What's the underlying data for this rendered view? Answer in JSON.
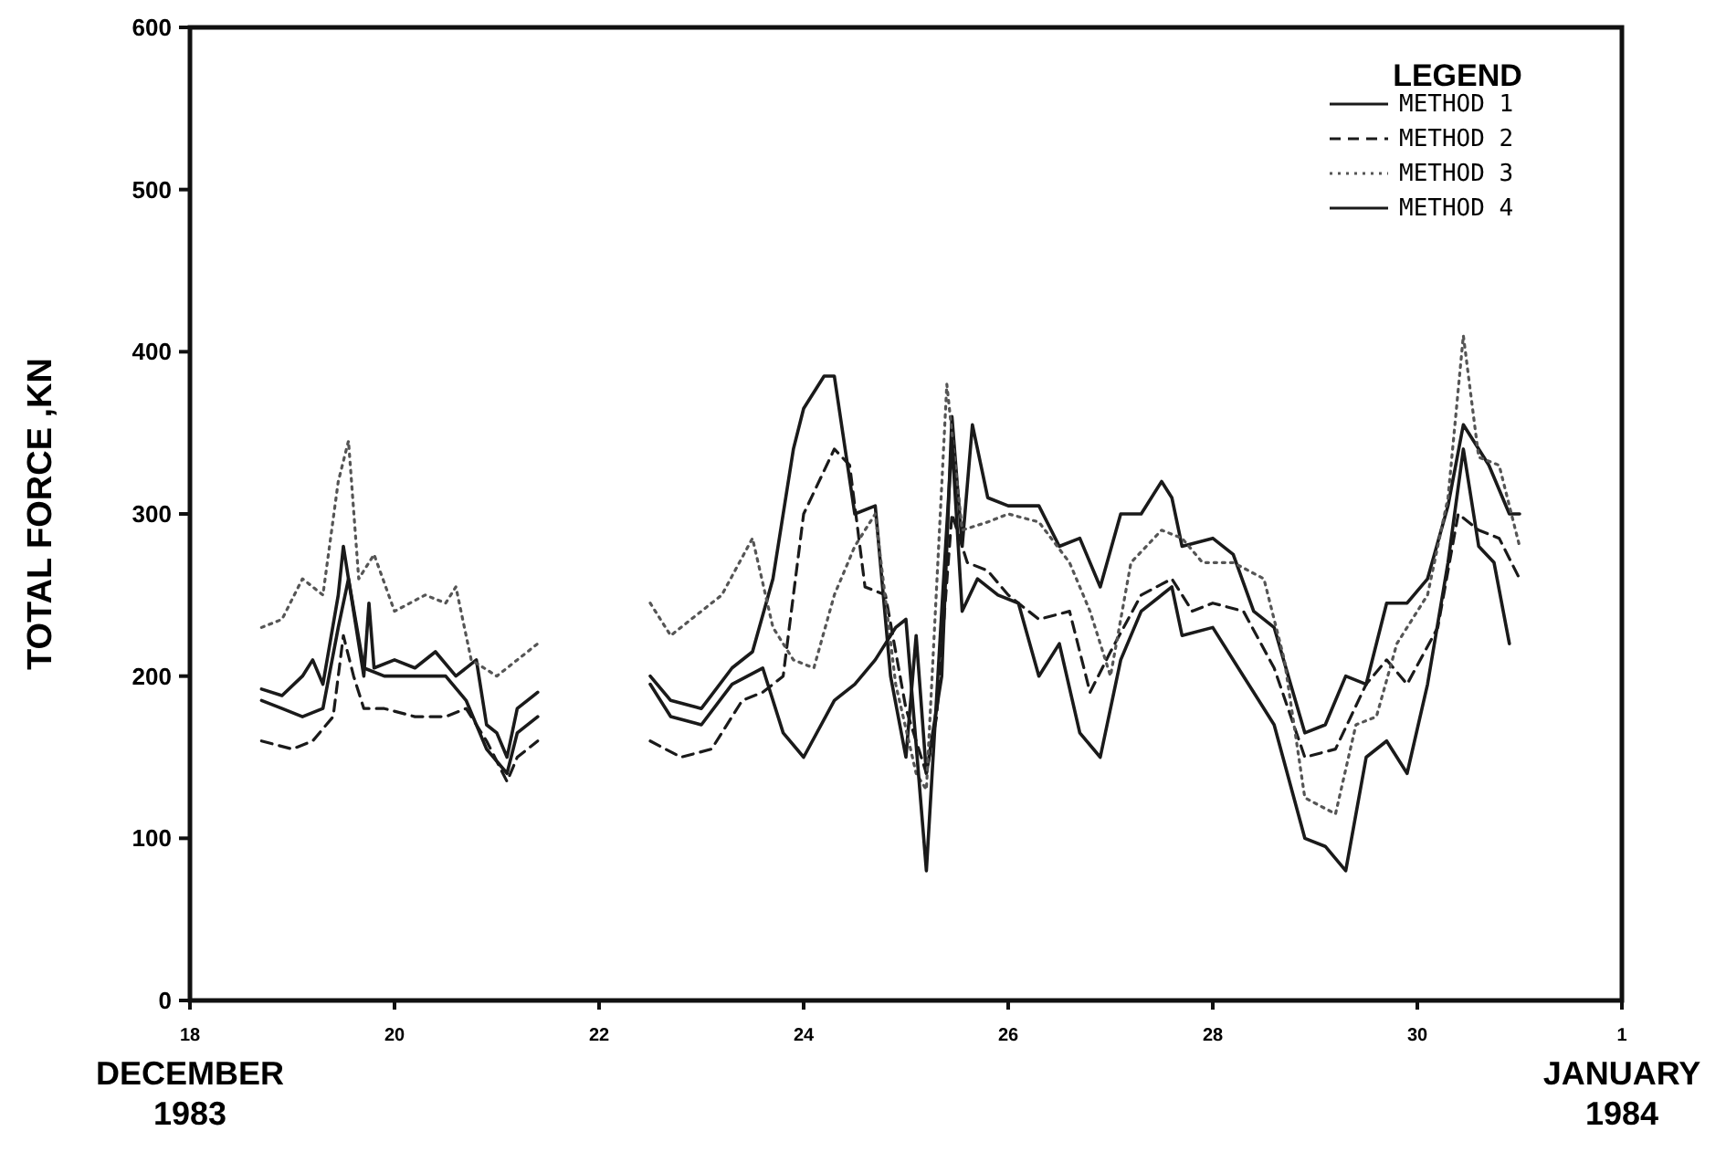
{
  "chart_data": {
    "type": "line",
    "ylabel": "TOTAL FORCE ,KN",
    "legend_title": "LEGEND",
    "legend": "top right",
    "grid": false,
    "xlim": [
      "1983-12-18",
      "1984-01-01"
    ],
    "xticks": [
      {
        "value": "1983-12-18",
        "label": "18"
      },
      {
        "value": "1983-12-20",
        "label": "20"
      },
      {
        "value": "1983-12-22",
        "label": "22"
      },
      {
        "value": "1983-12-24",
        "label": "24"
      },
      {
        "value": "1983-12-26",
        "label": "26"
      },
      {
        "value": "1983-12-28",
        "label": "28"
      },
      {
        "value": "1983-12-30",
        "label": "30"
      },
      {
        "value": "1984-01-01",
        "label": "1"
      }
    ],
    "annotations": [
      "DECEMBER\n1983",
      "JANUARY\n1984"
    ],
    "ylim": [
      0,
      600
    ],
    "yticks": [
      0,
      100,
      200,
      300,
      400,
      500,
      600
    ],
    "series": [
      {
        "name": "METHOD 1",
        "color": "#1a1a1a",
        "line_style": "solid",
        "x": [
          "1983-12-18T16:48",
          "1983-12-18T21:36",
          "1983-12-19T02:24",
          "1983-12-19T04:48",
          "1983-12-19T07:12",
          "1983-12-19T10:48",
          "1983-12-19T12:00",
          "1983-12-19T14:24",
          "1983-12-19T16:48",
          "1983-12-19T18:00",
          "1983-12-19T19:12",
          "1983-12-20T00:00",
          "1983-12-20T04:48",
          "1983-12-20T09:36",
          "1983-12-20T14:24",
          "1983-12-20T19:12",
          "1983-12-20T21:36",
          "1983-12-21T00:00",
          "1983-12-21T02:24",
          "1983-12-21T04:48",
          "1983-12-21T09:36",
          "1983-12-22T00:00",
          "1983-12-22T12:00",
          "1983-12-22T16:48",
          "1983-12-23T00:00",
          "1983-12-23T07:12",
          "1983-12-23T12:00",
          "1983-12-23T16:48",
          "1983-12-23T21:36",
          "1983-12-24T00:00",
          "1983-12-24T04:48",
          "1983-12-24T07:12",
          "1983-12-24T12:00",
          "1983-12-24T16:48",
          "1983-12-24T20:24",
          "1983-12-25T00:00",
          "1983-12-25T02:24",
          "1983-12-25T04:48",
          "1983-12-25T08:24",
          "1983-12-25T10:48",
          "1983-12-25T13:12",
          "1983-12-25T15:36",
          "1983-12-25T19:12",
          "1983-12-26T00:00",
          "1983-12-26T07:12",
          "1983-12-26T12:00",
          "1983-12-26T16:48",
          "1983-12-26T21:36",
          "1983-12-27T02:24",
          "1983-12-27T07:12",
          "1983-12-27T12:00",
          "1983-12-27T14:24",
          "1983-12-27T16:48",
          "1983-12-28T00:00",
          "1983-12-28T04:48",
          "1983-12-28T09:36",
          "1983-12-28T14:24",
          "1983-12-28T21:36",
          "1983-12-29T02:24",
          "1983-12-29T07:12",
          "1983-12-29T12:00",
          "1983-12-29T16:48",
          "1983-12-29T21:36",
          "1983-12-30T02:24",
          "1983-12-30T07:12",
          "1983-12-30T10:48",
          "1983-12-30T13:12",
          "1983-12-30T16:48",
          "1983-12-30T21:36",
          "1983-12-31T00:00"
        ],
        "values": [
          192,
          188,
          200,
          210,
          195,
          250,
          280,
          240,
          200,
          245,
          205,
          210,
          205,
          215,
          200,
          210,
          170,
          165,
          150,
          180,
          190,
          null,
          200,
          185,
          180,
          205,
          215,
          260,
          340,
          365,
          385,
          385,
          300,
          305,
          200,
          150,
          225,
          140,
          200,
          360,
          280,
          355,
          310,
          305,
          305,
          280,
          285,
          255,
          300,
          300,
          320,
          310,
          280,
          285,
          275,
          240,
          230,
          165,
          170,
          200,
          195,
          245,
          245,
          260,
          305,
          355,
          345,
          330,
          300,
          300
        ]
      },
      {
        "name": "METHOD 2",
        "color": "#1a1a1a",
        "line_style": "dashed",
        "x": [
          "1983-12-18T16:48",
          "1983-12-19T00:00",
          "1983-12-19T04:48",
          "1983-12-19T09:36",
          "1983-12-19T12:00",
          "1983-12-19T14:24",
          "1983-12-19T16:48",
          "1983-12-19T21:36",
          "1983-12-20T04:48",
          "1983-12-20T12:00",
          "1983-12-20T16:48",
          "1983-12-20T21:36",
          "1983-12-21T02:24",
          "1983-12-21T04:48",
          "1983-12-21T09:36",
          "1983-12-22T00:00",
          "1983-12-22T12:00",
          "1983-12-22T19:12",
          "1983-12-23T02:24",
          "1983-12-23T09:36",
          "1983-12-23T14:24",
          "1983-12-23T19:12",
          "1983-12-24T00:00",
          "1983-12-24T07:12",
          "1983-12-24T10:48",
          "1983-12-24T14:24",
          "1983-12-24T19:12",
          "1983-12-25T00:00",
          "1983-12-25T04:48",
          "1983-12-25T07:12",
          "1983-12-25T10:48",
          "1983-12-25T14:24",
          "1983-12-25T19:12",
          "1983-12-26T00:00",
          "1983-12-26T07:12",
          "1983-12-26T14:24",
          "1983-12-26T19:12",
          "1983-12-27T00:00",
          "1983-12-27T07:12",
          "1983-12-27T14:24",
          "1983-12-27T19:12",
          "1983-12-28T00:00",
          "1983-12-28T07:12",
          "1983-12-28T14:24",
          "1983-12-28T21:36",
          "1983-12-29T04:48",
          "1983-12-29T12:00",
          "1983-12-29T16:48",
          "1983-12-29T21:36",
          "1983-12-30T04:48",
          "1983-12-30T09:36",
          "1983-12-30T14:24",
          "1983-12-30T19:12",
          "1983-12-31T00:00"
        ],
        "values": [
          160,
          155,
          160,
          175,
          225,
          200,
          180,
          180,
          175,
          175,
          180,
          160,
          135,
          150,
          160,
          null,
          160,
          150,
          155,
          185,
          190,
          200,
          300,
          340,
          330,
          255,
          250,
          180,
          140,
          175,
          300,
          270,
          265,
          250,
          235,
          240,
          190,
          215,
          250,
          260,
          240,
          245,
          240,
          205,
          150,
          155,
          195,
          210,
          195,
          230,
          300,
          290,
          285,
          260
        ]
      },
      {
        "name": "METHOD 3",
        "color": "#555555",
        "line_style": "dotted",
        "x": [
          "1983-12-18T16:48",
          "1983-12-18T21:36",
          "1983-12-19T02:24",
          "1983-12-19T07:12",
          "1983-12-19T10:48",
          "1983-12-19T13:12",
          "1983-12-19T15:36",
          "1983-12-19T19:12",
          "1983-12-20T00:00",
          "1983-12-20T07:12",
          "1983-12-20T12:00",
          "1983-12-20T14:24",
          "1983-12-20T18:00",
          "1983-12-21T00:00",
          "1983-12-21T04:48",
          "1983-12-21T09:36",
          "1983-12-22T00:00",
          "1983-12-22T12:00",
          "1983-12-22T16:48",
          "1983-12-23T00:00",
          "1983-12-23T04:48",
          "1983-12-23T12:00",
          "1983-12-23T16:48",
          "1983-12-23T21:36",
          "1983-12-24T02:24",
          "1983-12-24T07:12",
          "1983-12-24T12:00",
          "1983-12-24T16:48",
          "1983-12-24T21:36",
          "1983-12-25T02:24",
          "1983-12-25T04:48",
          "1983-12-25T09:36",
          "1983-12-25T13:12",
          "1983-12-25T19:12",
          "1983-12-26T00:00",
          "1983-12-26T07:12",
          "1983-12-26T14:24",
          "1983-12-26T19:12",
          "1983-12-27T00:00",
          "1983-12-27T04:48",
          "1983-12-27T12:00",
          "1983-12-27T16:48",
          "1983-12-27T21:36",
          "1983-12-28T04:48",
          "1983-12-28T12:00",
          "1983-12-28T16:48",
          "1983-12-28T21:36",
          "1983-12-29T04:48",
          "1983-12-29T09:36",
          "1983-12-29T14:24",
          "1983-12-29T19:12",
          "1983-12-30T02:24",
          "1983-12-30T07:12",
          "1983-12-30T10:48",
          "1983-12-30T14:24",
          "1983-12-30T19:12",
          "1983-12-31T00:00"
        ],
        "values": [
          230,
          235,
          260,
          250,
          320,
          345,
          260,
          275,
          240,
          250,
          245,
          255,
          210,
          200,
          210,
          220,
          null,
          245,
          225,
          240,
          250,
          285,
          230,
          210,
          205,
          250,
          280,
          300,
          195,
          140,
          130,
          380,
          290,
          295,
          300,
          295,
          270,
          240,
          200,
          270,
          290,
          285,
          270,
          270,
          260,
          210,
          125,
          115,
          170,
          175,
          220,
          250,
          310,
          410,
          335,
          330,
          280
        ]
      },
      {
        "name": "METHOD 4",
        "color": "#1a1a1a",
        "line_style": "solid",
        "x": [
          "1983-12-18T16:48",
          "1983-12-18T21:36",
          "1983-12-19T02:24",
          "1983-12-19T07:12",
          "1983-12-19T10:48",
          "1983-12-19T13:12",
          "1983-12-19T16:48",
          "1983-12-19T21:36",
          "1983-12-20T04:48",
          "1983-12-20T12:00",
          "1983-12-20T16:48",
          "1983-12-20T21:36",
          "1983-12-21T02:24",
          "1983-12-21T04:48",
          "1983-12-21T09:36",
          "1983-12-22T00:00",
          "1983-12-22T12:00",
          "1983-12-22T16:48",
          "1983-12-23T00:00",
          "1983-12-23T07:12",
          "1983-12-23T14:24",
          "1983-12-23T19:12",
          "1983-12-24T00:00",
          "1983-12-24T07:12",
          "1983-12-24T12:00",
          "1983-12-24T16:48",
          "1983-12-24T21:36",
          "1983-12-25T00:00",
          "1983-12-25T04:48",
          "1983-12-25T08:24",
          "1983-12-25T10:48",
          "1983-12-25T13:12",
          "1983-12-25T16:48",
          "1983-12-25T21:36",
          "1983-12-26T02:24",
          "1983-12-26T07:12",
          "1983-12-26T12:00",
          "1983-12-26T16:48",
          "1983-12-26T21:36",
          "1983-12-27T02:24",
          "1983-12-27T07:12",
          "1983-12-27T14:24",
          "1983-12-27T16:48",
          "1983-12-28T00:00",
          "1983-12-28T07:12",
          "1983-12-28T14:24",
          "1983-12-28T21:36",
          "1983-12-29T02:24",
          "1983-12-29T07:12",
          "1983-12-29T12:00",
          "1983-12-29T16:48",
          "1983-12-29T21:36",
          "1983-12-30T02:24",
          "1983-12-30T07:12",
          "1983-12-30T10:48",
          "1983-12-30T14:24",
          "1983-12-30T18:00",
          "1983-12-30T21:36"
        ],
        "values": [
          185,
          180,
          175,
          180,
          230,
          260,
          205,
          200,
          200,
          200,
          185,
          155,
          140,
          165,
          175,
          null,
          195,
          175,
          170,
          195,
          205,
          165,
          150,
          185,
          195,
          210,
          230,
          235,
          80,
          240,
          345,
          240,
          260,
          250,
          245,
          200,
          220,
          165,
          150,
          210,
          240,
          255,
          225,
          230,
          200,
          170,
          100,
          95,
          80,
          150,
          160,
          140,
          195,
          270,
          340,
          280,
          270,
          220
        ]
      }
    ]
  }
}
